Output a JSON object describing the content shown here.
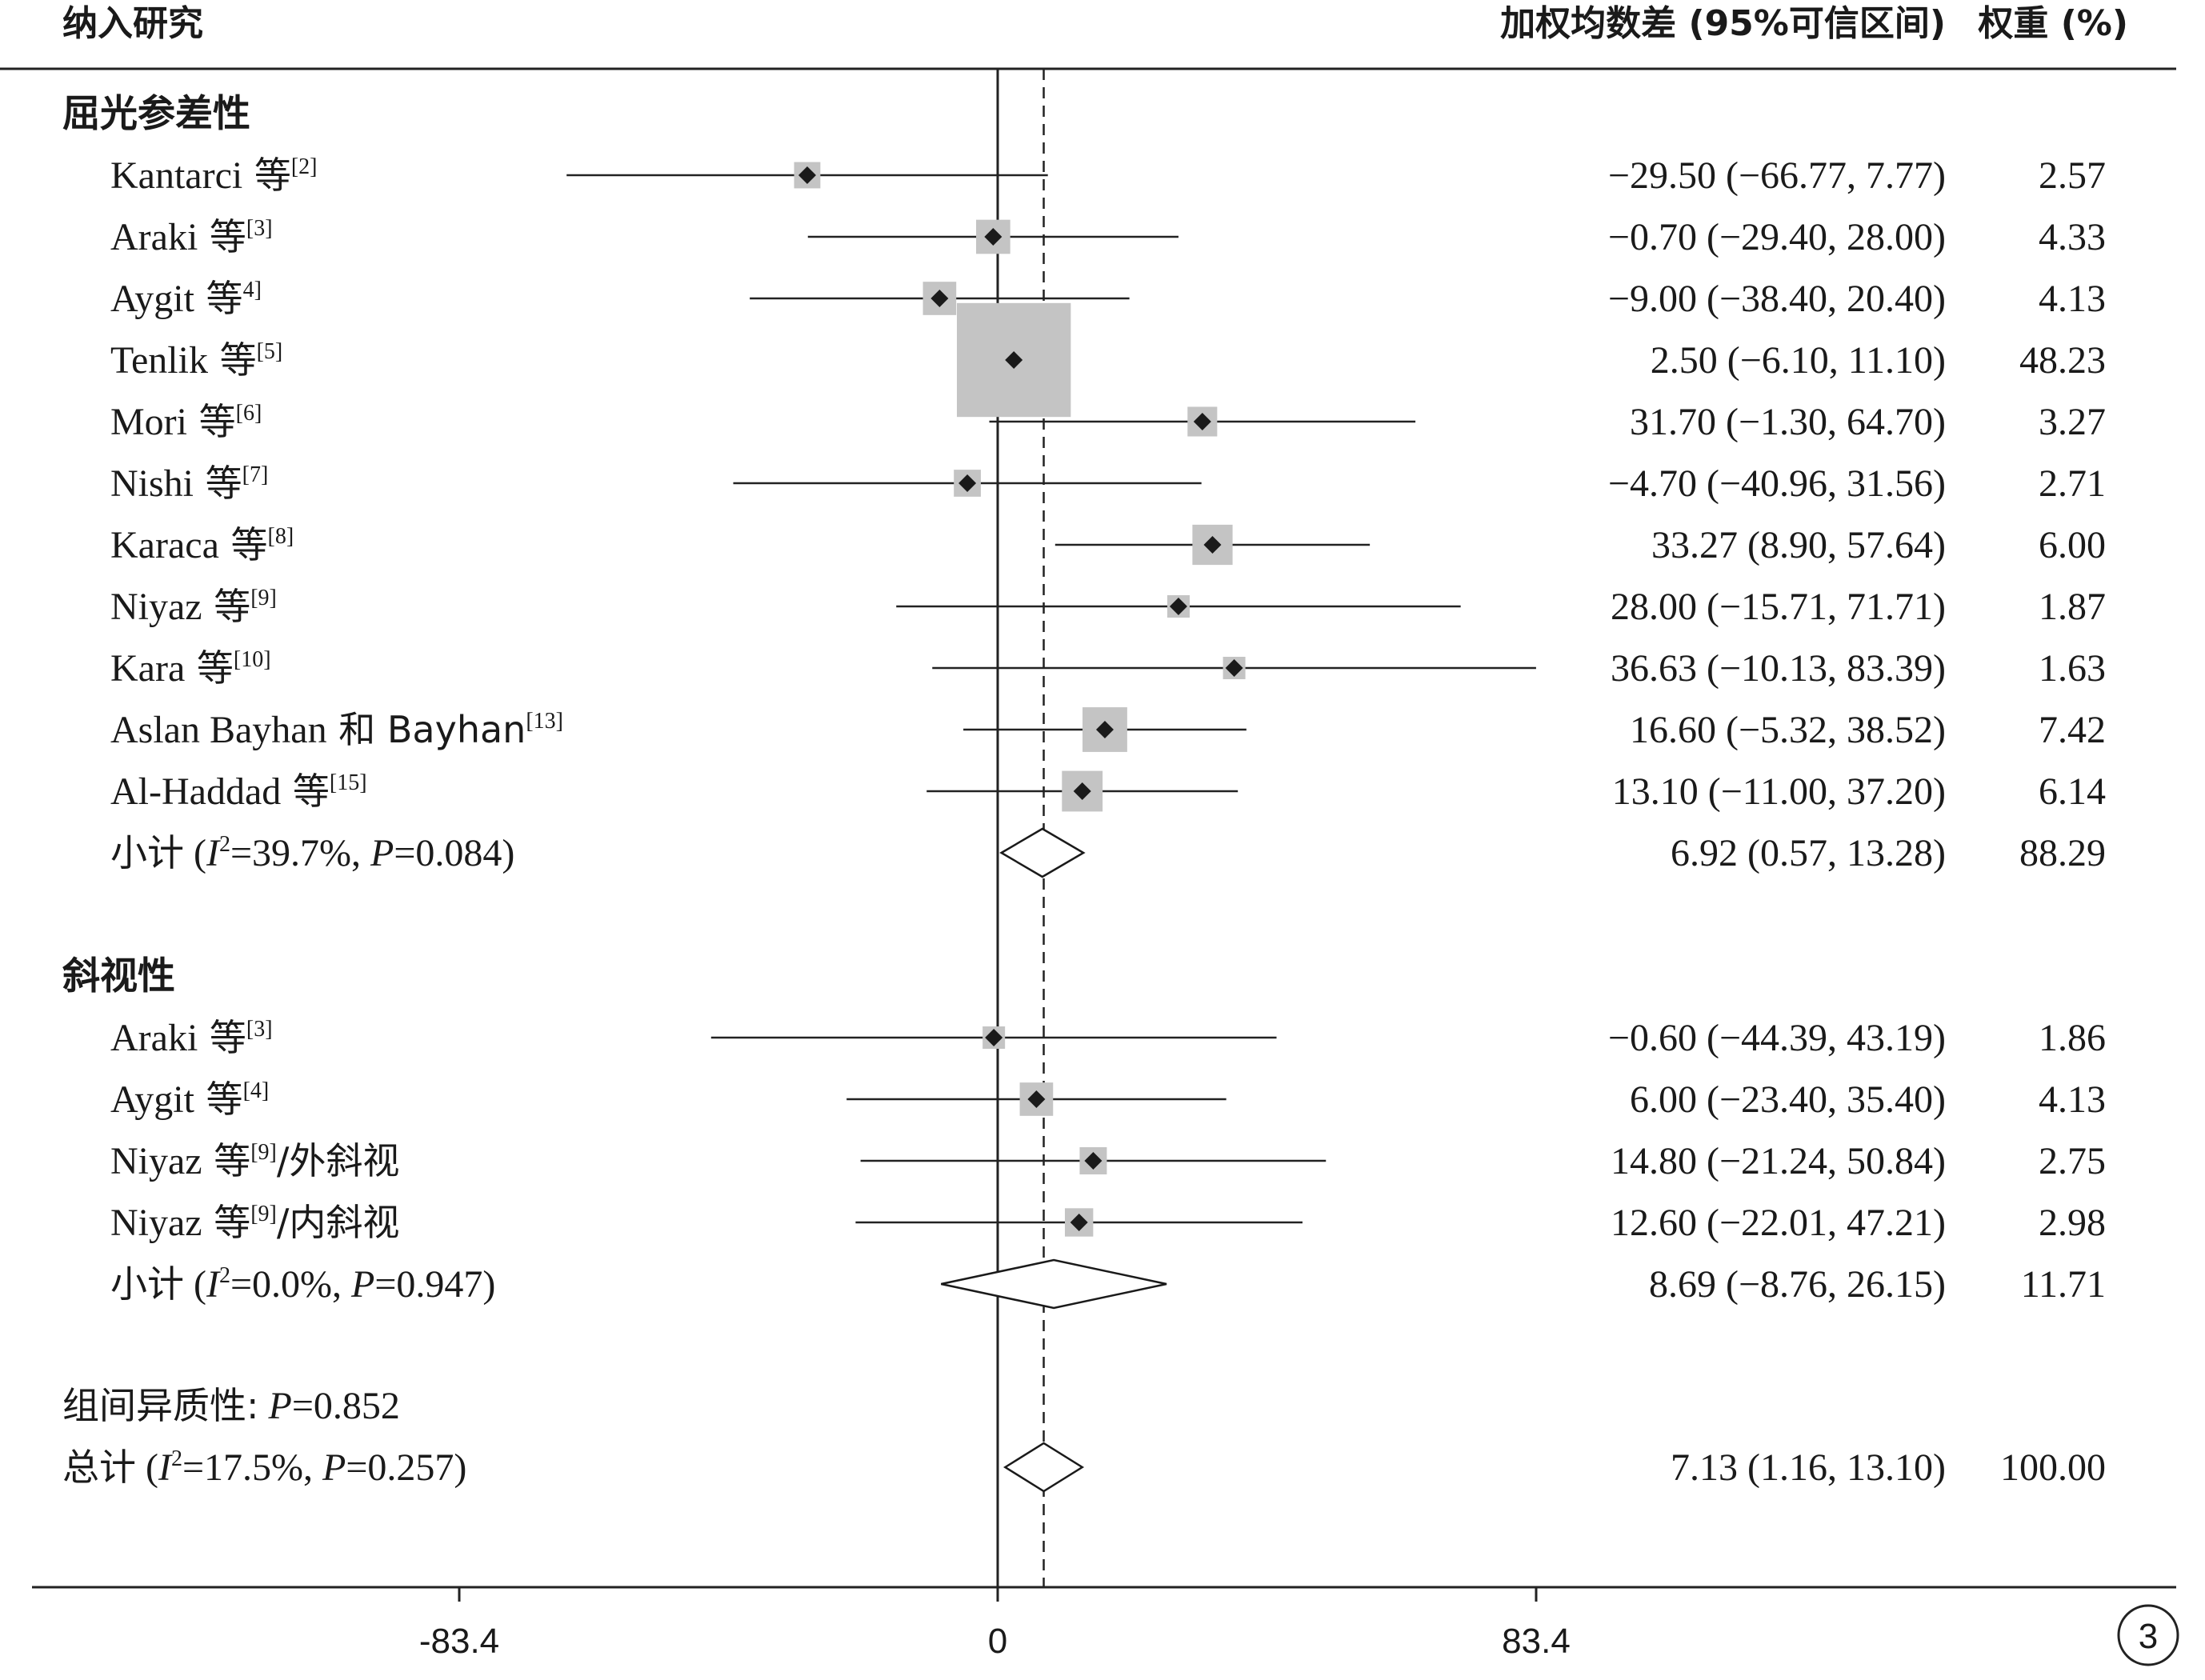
{
  "chart_data": {
    "type": "forest",
    "header": {
      "study_col": "纳入研究",
      "effect_col": "加权均数差 (95%可信区间)",
      "weight_col": "权重 (%)"
    },
    "x_axis": {
      "ticks": [
        -83.4,
        0,
        83.4
      ],
      "tick_labels": [
        "-83.4",
        "0",
        "83.4"
      ],
      "range": [
        -150,
        190
      ],
      "reference_line": 0,
      "overall_line": 7.13
    },
    "groups": [
      {
        "name": "屈光参差性",
        "studies": [
          {
            "author": "Kantarci",
            "suffix": " 等",
            "ref": "[2]",
            "tail": "",
            "est": -29.5,
            "lo": -66.77,
            "hi": 7.77,
            "weight": 2.57,
            "ci_text": "−29.50 (−66.77, 7.77)",
            "weight_text": "2.57"
          },
          {
            "author": "Araki",
            "suffix": " 等",
            "ref": "[3]",
            "tail": "",
            "est": -0.7,
            "lo": -29.4,
            "hi": 28.0,
            "weight": 4.33,
            "ci_text": "−0.70 (−29.40, 28.00)",
            "weight_text": "4.33"
          },
          {
            "author": "Aygit",
            "suffix": " 等",
            "ref": "4]",
            "tail": "",
            "est": -9.0,
            "lo": -38.4,
            "hi": 20.4,
            "weight": 4.13,
            "ci_text": "−9.00 (−38.40, 20.40)",
            "weight_text": "4.13"
          },
          {
            "author": "Tenlik",
            "suffix": " 等",
            "ref": "[5]",
            "tail": "",
            "est": 2.5,
            "lo": -6.1,
            "hi": 11.1,
            "weight": 48.23,
            "ci_text": "2.50 (−6.10, 11.10)",
            "weight_text": "48.23"
          },
          {
            "author": "Mori",
            "suffix": " 等",
            "ref": "[6]",
            "tail": "",
            "est": 31.7,
            "lo": -1.3,
            "hi": 64.7,
            "weight": 3.27,
            "ci_text": "31.70 (−1.30, 64.70)",
            "weight_text": "3.27"
          },
          {
            "author": "Nishi",
            "suffix": " 等",
            "ref": "[7]",
            "tail": "",
            "est": -4.7,
            "lo": -40.96,
            "hi": 31.56,
            "weight": 2.71,
            "ci_text": "−4.70 (−40.96, 31.56)",
            "weight_text": "2.71"
          },
          {
            "author": "Karaca",
            "suffix": " 等",
            "ref": "[8]",
            "tail": "",
            "est": 33.27,
            "lo": 8.9,
            "hi": 57.64,
            "weight": 6.0,
            "ci_text": "33.27 (8.90, 57.64)",
            "weight_text": "6.00"
          },
          {
            "author": "Niyaz",
            "suffix": " 等",
            "ref": "[9]",
            "tail": "",
            "est": 28.0,
            "lo": -15.71,
            "hi": 71.71,
            "weight": 1.87,
            "ci_text": "28.00 (−15.71, 71.71)",
            "weight_text": "1.87"
          },
          {
            "author": "Kara",
            "suffix": " 等",
            "ref": "[10]",
            "tail": "",
            "est": 36.63,
            "lo": -10.13,
            "hi": 83.39,
            "weight": 1.63,
            "ci_text": "36.63 (−10.13, 83.39)",
            "weight_text": "1.63"
          },
          {
            "author": "Aslan Bayhan",
            "suffix": " 和 Bayhan",
            "ref": "[13]",
            "tail": "",
            "est": 16.6,
            "lo": -5.32,
            "hi": 38.52,
            "weight": 7.42,
            "ci_text": "16.60 (−5.32, 38.52)",
            "weight_text": "7.42"
          },
          {
            "author": "Al-Haddad",
            "suffix": " 等",
            "ref": "[15]",
            "tail": "",
            "est": 13.1,
            "lo": -11.0,
            "hi": 37.2,
            "weight": 6.14,
            "ci_text": "13.10 (−11.00, 37.20)",
            "weight_text": "6.14"
          }
        ],
        "subtotal": {
          "prefix": "小计",
          "i2": "39.7%",
          "p": "0.084",
          "est": 6.92,
          "lo": 0.57,
          "hi": 13.28,
          "ci_text": "6.92 (0.57, 13.28)",
          "weight_text": "88.29"
        }
      },
      {
        "name": "斜视性",
        "studies": [
          {
            "author": "Araki",
            "suffix": " 等",
            "ref": "[3]",
            "tail": "",
            "est": -0.6,
            "lo": -44.39,
            "hi": 43.19,
            "weight": 1.86,
            "ci_text": "−0.60 (−44.39, 43.19)",
            "weight_text": "1.86"
          },
          {
            "author": "Aygit",
            "suffix": " 等",
            "ref": "[4]",
            "tail": "",
            "est": 6.0,
            "lo": -23.4,
            "hi": 35.4,
            "weight": 4.13,
            "ci_text": "6.00 (−23.40, 35.40)",
            "weight_text": "4.13"
          },
          {
            "author": "Niyaz",
            "suffix": " 等",
            "ref": "[9]",
            "tail": "/外斜视",
            "est": 14.8,
            "lo": -21.24,
            "hi": 50.84,
            "weight": 2.75,
            "ci_text": "14.80 (−21.24, 50.84)",
            "weight_text": "2.75"
          },
          {
            "author": "Niyaz",
            "suffix": " 等",
            "ref": "[9]",
            "tail": "/内斜视",
            "est": 12.6,
            "lo": -22.01,
            "hi": 47.21,
            "weight": 2.98,
            "ci_text": "12.60 (−22.01, 47.21)",
            "weight_text": "2.98"
          }
        ],
        "subtotal": {
          "prefix": "小计",
          "i2": "0.0%",
          "p": "0.947",
          "est": 8.69,
          "lo": -8.76,
          "hi": 26.15,
          "ci_text": "8.69 (−8.76, 26.15)",
          "weight_text": "11.71"
        }
      }
    ],
    "heterogeneity": {
      "label": "组间异质性:",
      "p": "0.852"
    },
    "overall": {
      "prefix": "总计",
      "i2": "17.5%",
      "p": "0.257",
      "est": 7.13,
      "lo": 1.16,
      "hi": 13.1,
      "ci_text": "7.13 (1.16, 13.10)",
      "weight_text": "100.00"
    },
    "page_number": "3"
  }
}
